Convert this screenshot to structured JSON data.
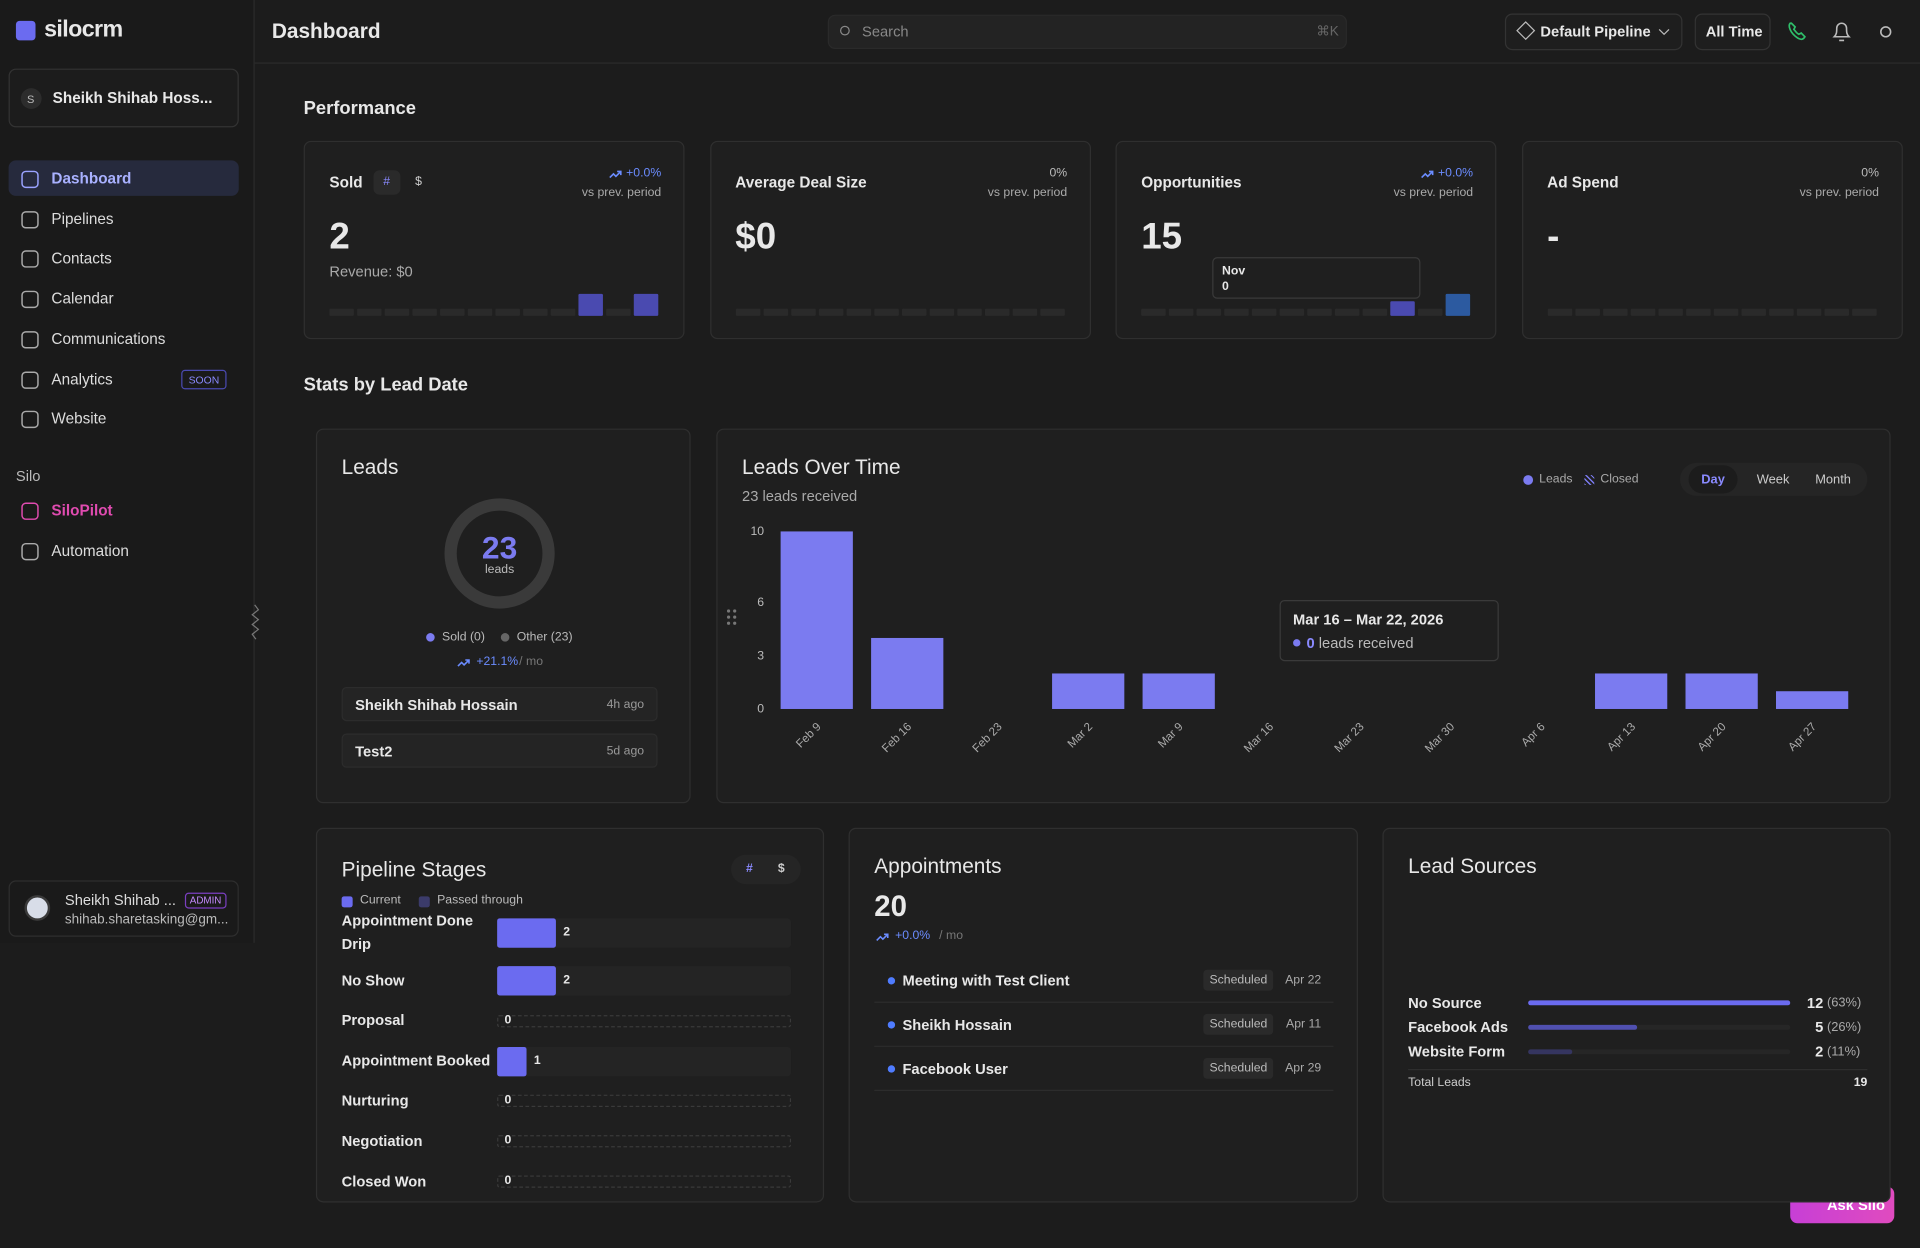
{
  "sidebar": {
    "brand": "silocrm",
    "account": {
      "initial": "S",
      "name": "Sheikh Shihab Hoss..."
    },
    "nav": [
      {
        "label": "Dashboard"
      },
      {
        "label": "Pipelines"
      },
      {
        "label": "Contacts"
      },
      {
        "label": "Calendar"
      },
      {
        "label": "Communications"
      },
      {
        "label": "Analytics",
        "badge": "SOON"
      },
      {
        "label": "Website"
      }
    ],
    "section": {
      "title": "Silo",
      "items": [
        "SiloPilot",
        "Automation"
      ]
    },
    "user": {
      "name": "Sheikh Shihab ...",
      "role": "ADMIN",
      "email": "shihab.sharetasking@gm..."
    }
  },
  "header": {
    "title": "Dashboard",
    "search": "Search",
    "shortcut": "⌘K",
    "pipeline": "Default Pipeline",
    "range": "All Time"
  },
  "performance": {
    "title": "Performance",
    "cards": [
      {
        "label": "Sold",
        "toggles": [
          "#",
          "$"
        ],
        "change": "+0.0%",
        "compare": "vs prev. period",
        "value": "2",
        "sub": "Revenue: $0",
        "spark": [
          0,
          0,
          0,
          0,
          0,
          0,
          0,
          0,
          0,
          1,
          0,
          1
        ]
      },
      {
        "label": "Average Deal Size",
        "change": "0%",
        "compare": "vs prev. period",
        "value": "$0",
        "spark": [
          0,
          0,
          0,
          0,
          0,
          0,
          0,
          0,
          0,
          0,
          0,
          0
        ]
      },
      {
        "label": "Opportunities",
        "change": "+0.0%",
        "compare": "vs prev. period",
        "value": "15",
        "spark": [
          0,
          0,
          0,
          0,
          0,
          0,
          0,
          0,
          0,
          1,
          0,
          2
        ],
        "tooltip": {
          "label": "Nov",
          "value": "0"
        }
      },
      {
        "label": "Ad Spend",
        "change": "0%",
        "compare": "vs prev. period",
        "value": "-",
        "spark": [
          0,
          0,
          0,
          0,
          0,
          0,
          0,
          0,
          0,
          0,
          0,
          0
        ]
      }
    ]
  },
  "stats_title": "Stats by Lead Date",
  "leads": {
    "title": "Leads",
    "total": "23",
    "unit": "leads",
    "sold": 0,
    "other": 23,
    "legend": [
      "Sold (0)",
      "Other (23)"
    ],
    "change": "+21.1%",
    "period": "/ mo",
    "recent": [
      {
        "name": "Sheikh Shihab Hossain",
        "time": "4h ago"
      },
      {
        "name": "Test2",
        "time": "5d ago"
      }
    ]
  },
  "chart_data": {
    "type": "bar",
    "title": "Leads Over Time",
    "subtitle": "23 leads received",
    "categories": [
      "Feb 9",
      "Feb 16",
      "Feb 23",
      "Mar 2",
      "Mar 9",
      "Mar 16",
      "Mar 23",
      "Mar 30",
      "Apr 6",
      "Apr 13",
      "Apr 20",
      "Apr 27"
    ],
    "series": [
      {
        "name": "Leads",
        "color": "#7b7bf0",
        "values": [
          10,
          4,
          0,
          2,
          2,
          0,
          0,
          0,
          0,
          2,
          2,
          1
        ]
      },
      {
        "name": "Closed",
        "color": "#7b7bf0",
        "values": [
          0,
          0,
          0,
          0,
          0,
          0,
          0,
          0,
          0,
          0,
          0,
          0
        ]
      }
    ],
    "ylim": [
      0,
      10
    ],
    "yticks": [
      0,
      3,
      6,
      10
    ],
    "tabs": [
      "Day",
      "Week",
      "Month"
    ],
    "tooltip": {
      "title": "Mar 16 – Mar 22, 2026",
      "value": 0,
      "text": "leads received"
    }
  },
  "pipeline": {
    "title": "Pipeline Stages",
    "toggles": [
      "#",
      "$"
    ],
    "legend": [
      "Current",
      "Passed through"
    ],
    "stages": [
      {
        "name": "Appointment Done Drip",
        "value": 2
      },
      {
        "name": "No Show",
        "value": 2
      },
      {
        "name": "Proposal",
        "value": 0
      },
      {
        "name": "Appointment Booked",
        "value": 1
      },
      {
        "name": "Nurturing",
        "value": 0
      },
      {
        "name": "Negotiation",
        "value": 0
      },
      {
        "name": "Closed Won",
        "value": 0
      }
    ]
  },
  "appointments": {
    "title": "Appointments",
    "total": 20,
    "change": "+0.0%",
    "period": "/ mo",
    "items": [
      {
        "title": "Meeting with Test Client",
        "status": "Scheduled",
        "date": "Apr 22"
      },
      {
        "title": "Sheikh Hossain",
        "status": "Scheduled",
        "date": "Apr 11"
      },
      {
        "title": "Facebook User",
        "status": "Scheduled",
        "date": "Apr 29"
      }
    ]
  },
  "lead_sources": {
    "title": "Lead Sources",
    "sources": [
      {
        "name": "No Source",
        "count": 12,
        "share": "(63%)"
      },
      {
        "name": "Facebook Ads",
        "count": 5,
        "share": "(26%)"
      },
      {
        "name": "Website Form",
        "count": 2,
        "share": "(11%)"
      }
    ],
    "total_label": "Total Leads",
    "total": 19
  },
  "ask": "Ask Silo"
}
